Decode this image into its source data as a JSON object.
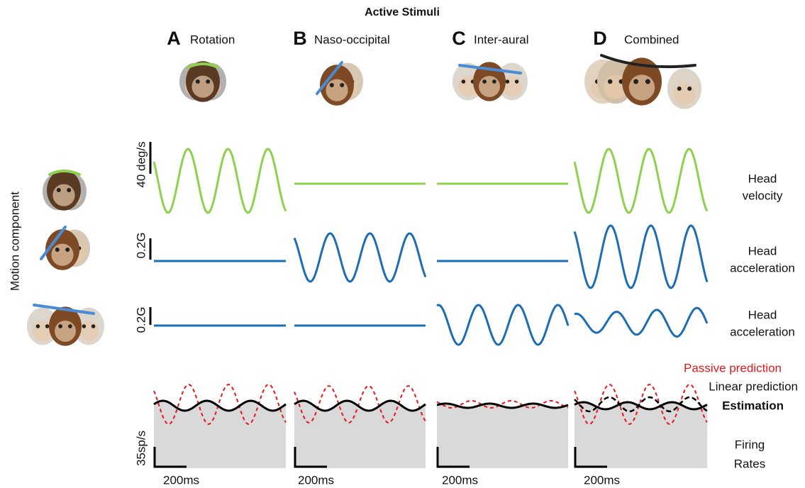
{
  "header": {
    "title": "Active Stimuli"
  },
  "columns": [
    {
      "letter": "A",
      "label": "Rotation"
    },
    {
      "letter": "B",
      "label": "Naso-occipital"
    },
    {
      "letter": "C",
      "label": "Inter-aural"
    },
    {
      "letter": "D",
      "label": "Combined"
    }
  ],
  "row_axis_label": "Motion component",
  "rows": [
    {
      "scale": "40 deg/s",
      "label_lines": [
        "Head",
        "velocity"
      ]
    },
    {
      "scale": "0.2G",
      "label_lines": [
        "Head",
        "acceleration"
      ]
    },
    {
      "scale": "0.2G",
      "label_lines": [
        "Head",
        "acceleration"
      ]
    }
  ],
  "firing": {
    "scale": "35sp/s",
    "time_scale": "200ms",
    "legend": [
      "Passive prediction",
      "Linear prediction",
      "Estimation"
    ],
    "label_lines": [
      "Firing",
      "Rates"
    ]
  }
}
